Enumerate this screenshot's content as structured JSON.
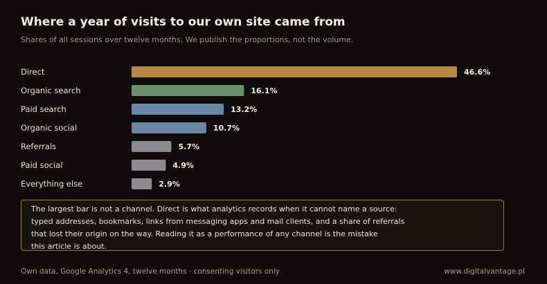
{
  "header": {
    "title": "Where a year of visits to our own site came from",
    "subtitle": "Shares of all sessions over twelve months. We publish the proportions, not the volume."
  },
  "chart_data": {
    "type": "bar",
    "orientation": "horizontal",
    "categories": [
      "Direct",
      "Organic search",
      "Paid search",
      "Organic social",
      "Referrals",
      "Paid social",
      "Everything else"
    ],
    "values": [
      46.6,
      16.1,
      13.2,
      10.7,
      5.7,
      4.9,
      2.9
    ],
    "value_labels": [
      "46.6%",
      "16.1%",
      "13.2%",
      "10.7%",
      "5.7%",
      "4.9%",
      "2.9%"
    ],
    "colors": [
      "#b68a45",
      "#6b9070",
      "#6b87a6",
      "#6b87a6",
      "#8a8a90",
      "#8a8a90",
      "#8a8a90"
    ],
    "unit": "%",
    "xlim": [
      0,
      46.6
    ],
    "grid": false
  },
  "note": {
    "lines": [
      "The largest bar is not a channel. Direct is what analytics records when it cannot name a source:",
      "typed addresses, bookmarks, links from messaging apps and mail clients, and a share of referrals",
      "that lost their origin on the way. Reading it as a performance of any channel is the mistake",
      "this article is about."
    ]
  },
  "footer": {
    "source": "Own data, Google Analytics 4, twelve months · consenting visitors only",
    "site": "www.digitalvantage.pl"
  }
}
